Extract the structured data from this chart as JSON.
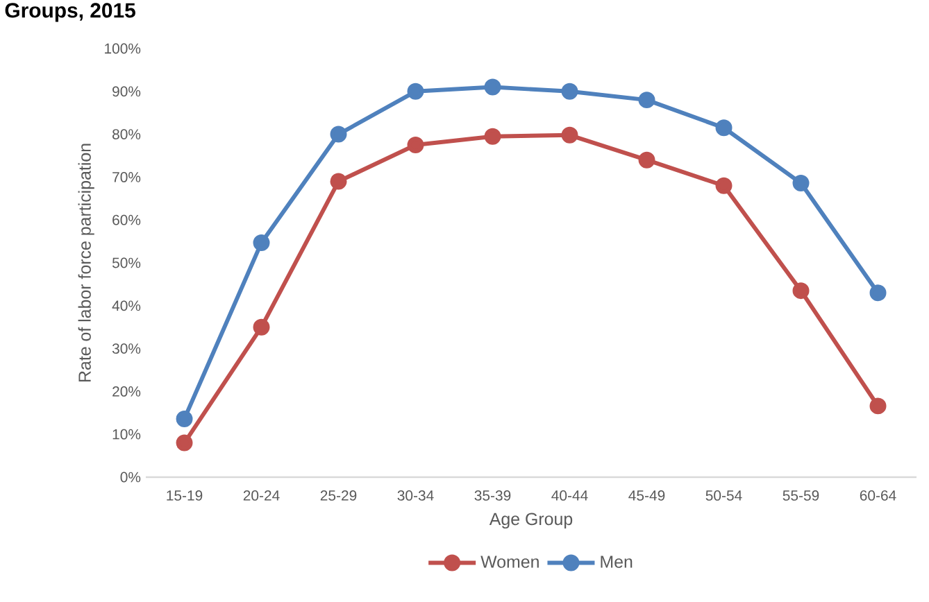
{
  "chart_data": {
    "type": "line",
    "title": "Groups, 2015",
    "xlabel": "Age Group",
    "ylabel": "Rate of labor force participation",
    "categories": [
      "15-19",
      "20-24",
      "25-29",
      "30-34",
      "35-39",
      "40-44",
      "45-49",
      "50-54",
      "55-59",
      "60-64"
    ],
    "series": [
      {
        "name": "Women",
        "color": "#c0504d",
        "values": [
          8,
          35,
          69,
          77.5,
          79.5,
          79.8,
          74,
          68,
          43.5,
          16.6
        ]
      },
      {
        "name": "Men",
        "color": "#4f81bd",
        "values": [
          13.6,
          54.7,
          80,
          90,
          91,
          90,
          88,
          81.5,
          68.6,
          43
        ]
      }
    ],
    "ylim": [
      0,
      100
    ],
    "yticks": [
      {
        "value": 0,
        "label": "0%"
      },
      {
        "value": 10,
        "label": "10%"
      },
      {
        "value": 20,
        "label": "20%"
      },
      {
        "value": 30,
        "label": "30%"
      },
      {
        "value": 40,
        "label": "40%"
      },
      {
        "value": 50,
        "label": "50%"
      },
      {
        "value": 60,
        "label": "60%"
      },
      {
        "value": 70,
        "label": "70%"
      },
      {
        "value": 80,
        "label": "80%"
      },
      {
        "value": 90,
        "label": "90%"
      },
      {
        "value": 100,
        "label": "100%"
      }
    ],
    "grid": false,
    "legend": "bottom",
    "marker": "circle",
    "line_style": "solid"
  }
}
